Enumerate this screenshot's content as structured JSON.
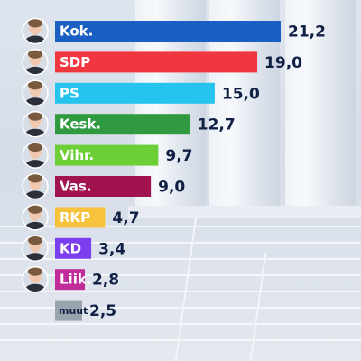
{
  "chart_data": {
    "type": "bar",
    "orientation": "horizontal",
    "categories": [
      "Kok.",
      "SDP",
      "PS",
      "Kesk.",
      "Vihr.",
      "Vas.",
      "RKP",
      "KD",
      "Liik.",
      "muut"
    ],
    "values": [
      21.2,
      19.0,
      15.0,
      12.7,
      9.7,
      9.0,
      4.7,
      3.4,
      2.8,
      2.5
    ],
    "value_labels": [
      "21,2",
      "19,0",
      "15,0",
      "12,7",
      "9,7",
      "9,0",
      "4,7",
      "3,4",
      "2,8",
      "2,5"
    ],
    "colors": [
      "#1b5fc4",
      "#f0373f",
      "#27c3ef",
      "#2f9a3f",
      "#6ccf35",
      "#a0134e",
      "#f7c33c",
      "#7c3ff0",
      "#c22b9a",
      "#9aa4ae"
    ],
    "avatars": [
      "Kok.",
      "SDP",
      "PS",
      "Kesk.",
      "Vihr.",
      "Vas.",
      "RKP",
      "KD",
      "Liik."
    ],
    "title": "",
    "xlabel": "",
    "ylabel": "",
    "xlim": [
      0,
      21.2
    ],
    "grid": false,
    "legend": "none"
  }
}
